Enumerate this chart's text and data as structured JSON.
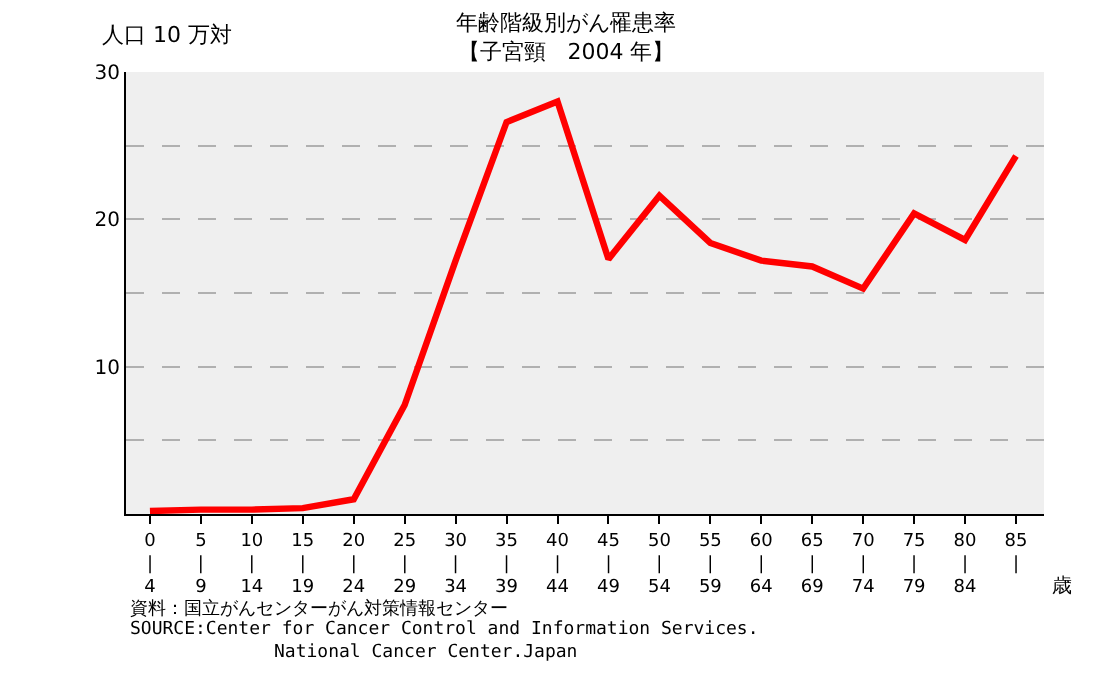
{
  "chart_data": {
    "type": "line",
    "title": "年齢階級別がん罹患率",
    "subtitle": "【子宮頸　2004 年】",
    "ylabel": "人口 10 万対",
    "xlabel": "歳",
    "categories": [
      "0\n|\n4",
      "5\n|\n9",
      "10\n|\n14",
      "15\n|\n19",
      "20\n|\n24",
      "25\n|\n29",
      "30\n|\n34",
      "35\n|\n39",
      "40\n|\n44",
      "45\n|\n49",
      "50\n|\n54",
      "55\n|\n59",
      "60\n|\n64",
      "65\n|\n69",
      "70\n|\n74",
      "75\n|\n79",
      "80\n|\n84",
      "85\n|"
    ],
    "series": [
      {
        "color": "#ff0000",
        "values": [
          0.2,
          0.3,
          0.3,
          0.4,
          1.0,
          7.4,
          17.2,
          26.6,
          28.0,
          17.3,
          21.6,
          18.4,
          17.2,
          16.8,
          15.3,
          20.4,
          18.6,
          24.3
        ]
      }
    ],
    "ylim": [
      0,
      30
    ],
    "yticks": [
      {
        "value": 5,
        "label": null
      },
      10,
      {
        "value": 15,
        "label": null
      },
      20,
      {
        "value": 25,
        "label": null
      },
      30
    ],
    "grid": "y",
    "marker": "none",
    "line_style": "solid",
    "annotations": [
      "資料：国立がんセンターがん対策情報センター",
      "SOURCE:Center for Cancer Control and Information Services.\n　　　　　　　　National Cancer Center.Japan"
    ]
  }
}
